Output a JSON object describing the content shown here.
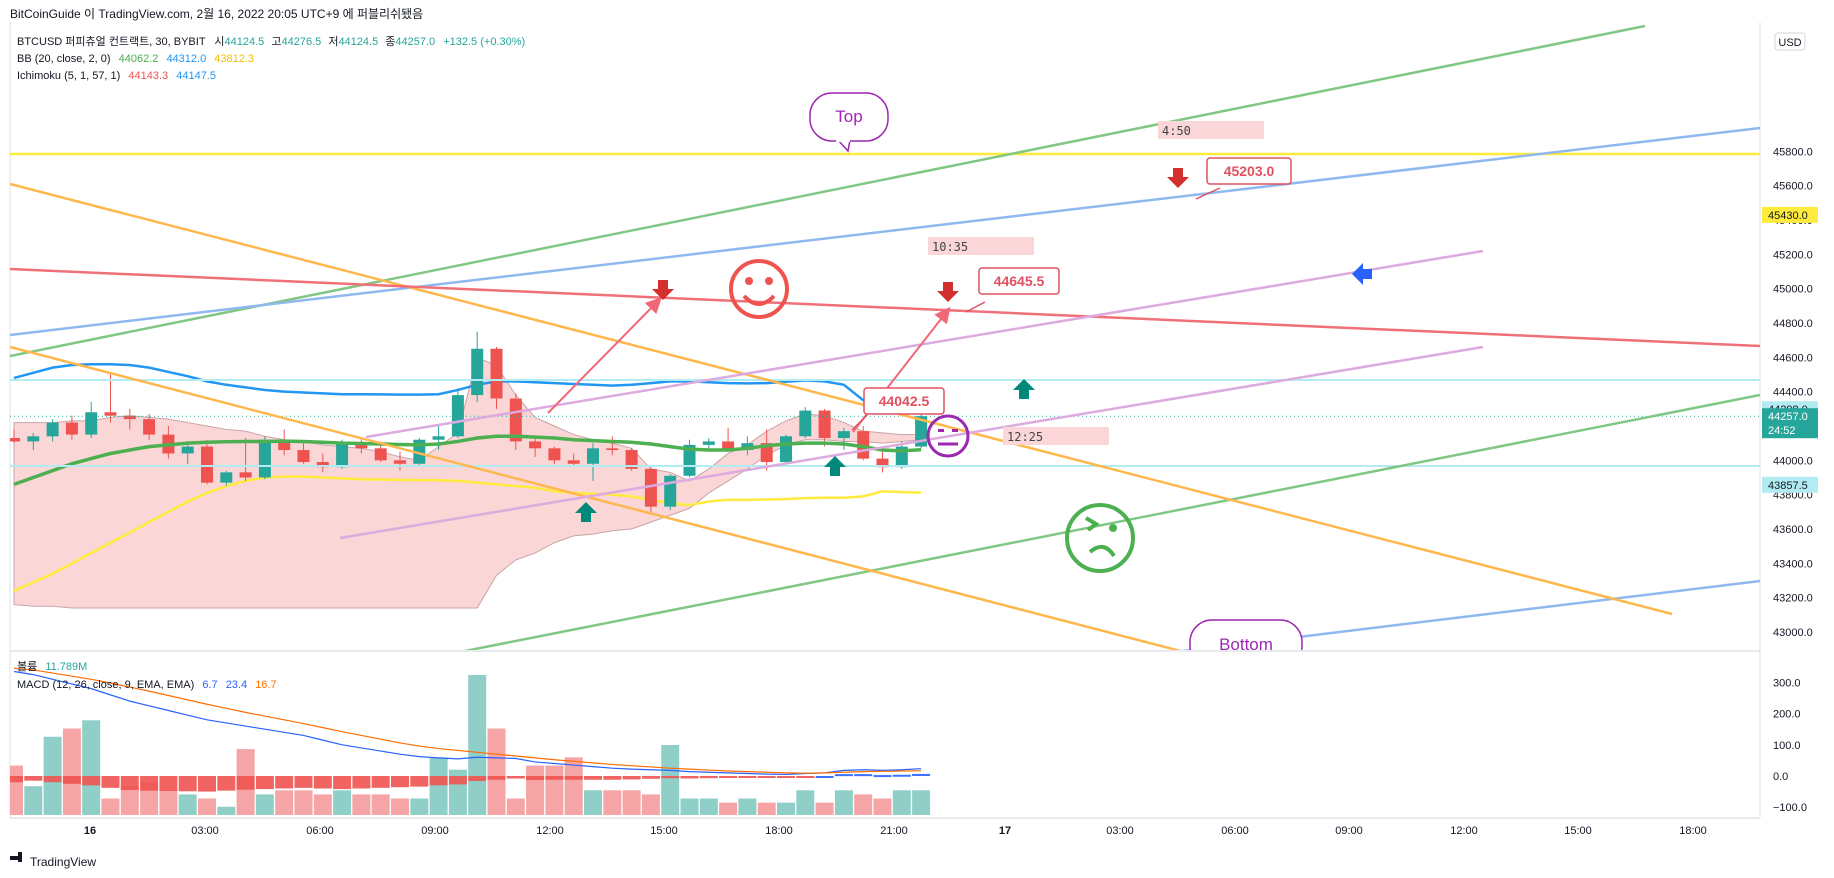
{
  "header": {
    "title": "BitCoinGuide 이 TradingView.com, 2월 16, 2022 20:05 UTC+9 에 퍼블리쉬됐음",
    "footer_brand": "TradingView",
    "currency_tag": "USD"
  },
  "legend": {
    "symbol": "BTCUSD 퍼피츄얼 컨트랙트, 30, BYBIT",
    "o_label": "시",
    "o": "44124.5",
    "h_label": "고",
    "h": "44276.5",
    "l_label": "저",
    "l": "44124.5",
    "c_label": "종",
    "c": "44257.0",
    "chg": "+132.5 (+0.30%)",
    "bb_label": "BB (20, close, 2, 0)",
    "bb_mid": "44062.2",
    "bb_up": "44312.0",
    "bb_low": "43812.3",
    "ichi_label": "Ichimoku (5, 1, 57, 1)",
    "ichi_a": "44143.3",
    "ichi_b": "44147.5",
    "vol_label": "볼륨",
    "vol": "11.789M",
    "macd_label": "MACD (12, 26, close, 9, EMA, EMA)",
    "macd_hist": "6.7",
    "macd_line": "23.4",
    "macd_signal": "16.7"
  },
  "colors": {
    "up": "#26a69a",
    "down": "#ef5350",
    "bb_mid": "#4caf50",
    "bb_up": "#2196f3",
    "bb_low": "#ffeb3b"
  },
  "annotations": {
    "top_bubble": "Top",
    "bottom_bubble": "Bottom",
    "callout_1": "45203.0",
    "callout_2": "44645.5",
    "callout_3": "44042.5",
    "time_box_1": "4:50",
    "time_box_2": "10:35",
    "time_box_3": "12:25"
  },
  "chart_data": [
    {
      "type": "candlestick",
      "title": "BTCUSD 퍼피츄얼 컨트랙트, 30, BYBIT",
      "y_axis_ticks": [
        43000,
        43200,
        43400,
        43600,
        43800,
        44000,
        44200,
        44400,
        44600,
        44800,
        45000,
        45200,
        45400,
        45600,
        45800
      ],
      "ylim": [
        42950,
        46100
      ],
      "x_axis_ticks": [
        "16",
        "03:00",
        "06:00",
        "09:00",
        "12:00",
        "15:00",
        "18:00",
        "21:00",
        "17",
        "03:00",
        "06:00",
        "09:00",
        "12:00",
        "15:00",
        "18:00"
      ],
      "price_labels": [
        {
          "value": 45430.0,
          "text": "45430.0",
          "color": "#ffeb3b"
        },
        {
          "value": 44298.0,
          "text": "44298.0",
          "color": "#b2ebf2"
        },
        {
          "value": 44257.0,
          "text": "44257.0",
          "sub": "24:52",
          "color": "#26a69a"
        },
        {
          "value": 43857.5,
          "text": "43857.5",
          "color": "#b2ebf2"
        }
      ],
      "candles": [
        [
          44130,
          44180,
          44100,
          44110
        ],
        [
          44110,
          44160,
          44060,
          44140
        ],
        [
          44140,
          44240,
          44110,
          44220
        ],
        [
          44220,
          44260,
          44120,
          44150
        ],
        [
          44150,
          44340,
          44130,
          44280
        ],
        [
          44280,
          44500,
          44220,
          44260
        ],
        [
          44260,
          44300,
          44180,
          44240
        ],
        [
          44240,
          44270,
          44120,
          44150
        ],
        [
          44150,
          44200,
          44010,
          44040
        ],
        [
          44040,
          44110,
          43980,
          44080
        ],
        [
          44080,
          44120,
          43860,
          43870
        ],
        [
          43870,
          43940,
          43850,
          43930
        ],
        [
          43930,
          44130,
          43880,
          43900
        ],
        [
          43900,
          44140,
          43890,
          44120
        ],
        [
          44120,
          44180,
          44030,
          44060
        ],
        [
          44060,
          44100,
          43980,
          43990
        ],
        [
          43990,
          44040,
          43930,
          43960
        ],
        [
          43960,
          44120,
          43950,
          44100
        ],
        [
          44100,
          44130,
          44040,
          44070
        ],
        [
          44070,
          44110,
          43990,
          44000
        ],
        [
          44000,
          44050,
          43940,
          43980
        ],
        [
          43980,
          44130,
          43970,
          44120
        ],
        [
          44120,
          44200,
          44060,
          44140
        ],
        [
          44140,
          44420,
          44130,
          44380
        ],
        [
          44380,
          44750,
          44340,
          44650
        ],
        [
          44650,
          44660,
          44300,
          44360
        ],
        [
          44360,
          44390,
          44060,
          44110
        ],
        [
          44110,
          44140,
          44020,
          44070
        ],
        [
          44070,
          44080,
          43980,
          44000
        ],
        [
          44000,
          44040,
          43960,
          43980
        ],
        [
          43980,
          44100,
          43880,
          44070
        ],
        [
          44070,
          44140,
          44030,
          44060
        ],
        [
          44060,
          44070,
          43940,
          43950
        ],
        [
          43950,
          43960,
          43700,
          43730
        ],
        [
          43730,
          43920,
          43710,
          43910
        ],
        [
          43910,
          44120,
          43900,
          44090
        ],
        [
          44090,
          44130,
          44060,
          44110
        ],
        [
          44110,
          44190,
          44050,
          44060
        ],
        [
          44060,
          44140,
          44030,
          44100
        ],
        [
          44100,
          44180,
          43940,
          43990
        ],
        [
          43990,
          44150,
          43980,
          44140
        ],
        [
          44140,
          44310,
          44130,
          44290
        ],
        [
          44290,
          44300,
          44080,
          44130
        ],
        [
          44130,
          44190,
          44060,
          44170
        ],
        [
          44170,
          44200,
          44000,
          44010
        ],
        [
          44010,
          44080,
          43930,
          43960
        ],
        [
          43960,
          44110,
          43950,
          44080
        ],
        [
          44080,
          44280,
          44070,
          44257
        ]
      ],
      "bb_mid": [
        43860,
        43900,
        43940,
        43980,
        44010,
        44040,
        44060,
        44080,
        44090,
        44100,
        44105,
        44108,
        44110,
        44110,
        44112,
        44110,
        44105,
        44100,
        44098,
        44095,
        44092,
        44090,
        44095,
        44110,
        44130,
        44140,
        44140,
        44135,
        44130,
        44120,
        44115,
        44110,
        44105,
        44095,
        44080,
        44065,
        44060,
        44060,
        44070,
        44085,
        44095,
        44100,
        44100,
        44095,
        44080,
        44060,
        44055,
        44062
      ],
      "bb_up": [
        44480,
        44510,
        44540,
        44555,
        44560,
        44560,
        44555,
        44540,
        44515,
        44490,
        44460,
        44440,
        44425,
        44410,
        44400,
        44395,
        44390,
        44385,
        44385,
        44384,
        44383,
        44383,
        44385,
        44410,
        44440,
        44460,
        44460,
        44455,
        44450,
        44445,
        44440,
        44435,
        44440,
        44450,
        44460,
        44460,
        44455,
        44450,
        44448,
        44450,
        44458,
        44466,
        44460,
        44440,
        44350,
        44330,
        44320,
        44312
      ],
      "bb_low": [
        43240,
        43290,
        43340,
        43400,
        43460,
        43520,
        43580,
        43640,
        43700,
        43760,
        43810,
        43850,
        43880,
        43900,
        43905,
        43905,
        43900,
        43895,
        43890,
        43888,
        43886,
        43885,
        43885,
        43880,
        43870,
        43860,
        43850,
        43840,
        43820,
        43810,
        43805,
        43800,
        43790,
        43770,
        43750,
        43740,
        43760,
        43770,
        43770,
        43772,
        43775,
        43780,
        43782,
        43782,
        43790,
        43820,
        43815,
        43812
      ],
      "cloud_top": [
        44220,
        44220,
        44220,
        44230,
        44230,
        44250,
        44260,
        44250,
        44240,
        44220,
        44200,
        44180,
        44170,
        44140,
        44120,
        44110,
        44090,
        44080,
        44070,
        44050,
        44020,
        44000,
        44080,
        44160,
        44600,
        44550,
        44380,
        44250,
        44200,
        44150,
        44120,
        44100,
        44070,
        43950,
        43930,
        43880,
        43950,
        44040,
        44090,
        44170,
        44230,
        44270,
        44260,
        44220,
        44170,
        44160,
        44150,
        44150
      ],
      "cloud_bottom": [
        43160,
        43150,
        43150,
        43140,
        43140,
        43140,
        43140,
        43140,
        43140,
        43140,
        43140,
        43140,
        43140,
        43140,
        43140,
        43140,
        43140,
        43140,
        43140,
        43140,
        43140,
        43140,
        43140,
        43140,
        43140,
        43330,
        43420,
        43460,
        43520,
        43560,
        43570,
        43590,
        43600,
        43640,
        43680,
        43720,
        43810,
        43880,
        43950,
        44030,
        44090,
        44120,
        44120,
        44110,
        44110,
        44100,
        44110,
        44120
      ]
    },
    {
      "type": "bar",
      "title": "MACD (12, 26, close, 9, EMA, EMA)",
      "y_axis_ticks": [
        -100,
        0,
        100,
        200,
        300
      ],
      "ylim": [
        -140,
        340
      ],
      "volume_scale_max": 340,
      "volume": [
        120,
        70,
        190,
        210,
        230,
        40,
        70,
        80,
        60,
        50,
        40,
        20,
        160,
        50,
        60,
        60,
        50,
        60,
        50,
        50,
        40,
        40,
        140,
        110,
        340,
        210,
        40,
        120,
        120,
        140,
        60,
        60,
        60,
        50,
        170,
        40,
        40,
        30,
        40,
        30,
        30,
        60,
        30,
        60,
        50,
        40,
        60,
        60
      ],
      "macd_line": [
        335,
        325,
        310,
        295,
        280,
        260,
        240,
        225,
        210,
        195,
        180,
        170,
        160,
        150,
        140,
        130,
        115,
        100,
        90,
        80,
        70,
        62,
        58,
        55,
        60,
        58,
        56,
        45,
        40,
        35,
        30,
        25,
        22,
        20,
        18,
        14,
        12,
        10,
        8,
        6,
        5,
        8,
        10,
        18,
        20,
        18,
        20,
        23.4
      ],
      "macd_signal": [
        345,
        340,
        330,
        320,
        310,
        298,
        285,
        272,
        258,
        244,
        230,
        217,
        204,
        192,
        180,
        168,
        155,
        142,
        130,
        118,
        106,
        96,
        88,
        82,
        76,
        70,
        64,
        58,
        52,
        47,
        42,
        37,
        33,
        29,
        25,
        22,
        19,
        16,
        14,
        12,
        10,
        9,
        10,
        12,
        14,
        15,
        16,
        16.7
      ],
      "macd_hist": [
        -20,
        -15,
        -20,
        -25,
        -30,
        -38,
        -45,
        -47,
        -48,
        -49,
        -50,
        -47,
        -44,
        -42,
        -40,
        -38,
        -40,
        -42,
        -40,
        -38,
        -36,
        -34,
        -30,
        -27,
        -16,
        -12,
        -8,
        -13,
        -12,
        -12,
        -12,
        -12,
        -11,
        -9,
        -7,
        -8,
        -7,
        -6,
        -6,
        -6,
        -5,
        -1,
        0,
        6,
        6,
        3,
        4,
        6.7
      ]
    }
  ]
}
